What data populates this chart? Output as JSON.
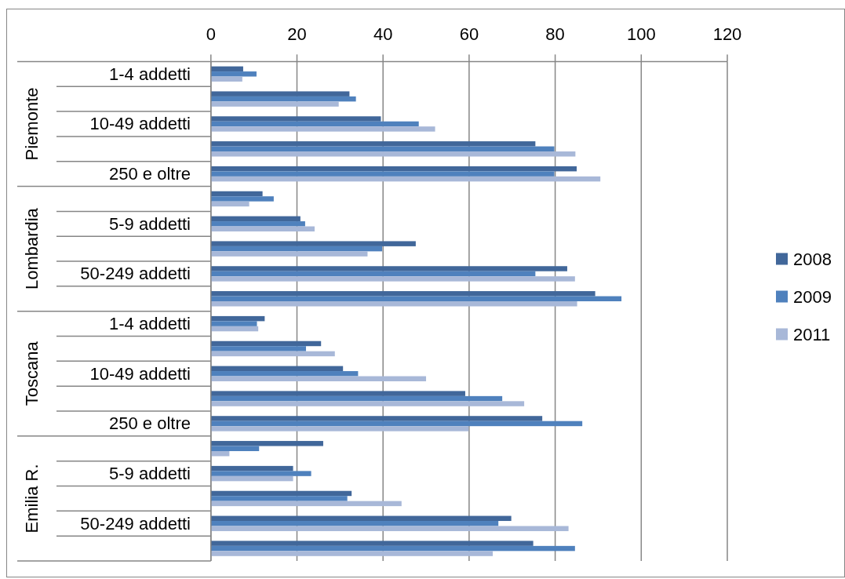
{
  "chart_data": {
    "type": "bar",
    "orientation": "horizontal",
    "categories": [
      "1-4 addetti",
      null,
      "10-49 addetti",
      null,
      "250 e oltre",
      null,
      "5-9 addetti",
      null,
      "50-249 addetti",
      null,
      "1-4 addetti",
      null,
      "10-49 addetti",
      null,
      "250 e oltre",
      null,
      "5-9 addetti",
      null,
      "50-249 addetti",
      null
    ],
    "series": [
      {
        "name": "2008",
        "color": "#41679a",
        "values": [
          7.5,
          32.2,
          39.5,
          75.4,
          85.0,
          12.0,
          20.8,
          47.6,
          82.8,
          89.3,
          12.5,
          25.6,
          30.7,
          59.1,
          77.0,
          26.1,
          19.1,
          32.7,
          69.8,
          74.9
        ]
      },
      {
        "name": "2009",
        "color": "#4f81bd",
        "values": [
          10.6,
          33.7,
          48.3,
          79.8,
          79.8,
          14.6,
          21.9,
          39.8,
          75.4,
          95.4,
          10.7,
          22.1,
          34.2,
          67.7,
          86.3,
          11.2,
          23.3,
          31.7,
          66.8,
          84.6
        ]
      },
      {
        "name": "2011",
        "color": "#a8b8d8",
        "values": [
          7.3,
          29.7,
          52.1,
          84.7,
          90.5,
          8.9,
          24.1,
          36.4,
          84.6,
          85.1,
          11.0,
          28.8,
          50.0,
          72.8,
          59.9,
          4.3,
          19.1,
          44.3,
          83.1,
          65.5
        ]
      }
    ],
    "xlim": [
      0,
      120
    ],
    "xticks": [
      0,
      20,
      40,
      60,
      80,
      100,
      120
    ],
    "grid": "x",
    "legend": "right",
    "annotations": [
      "Piemonte",
      "Lombardia",
      "Toscana",
      "Emilia R."
    ]
  }
}
